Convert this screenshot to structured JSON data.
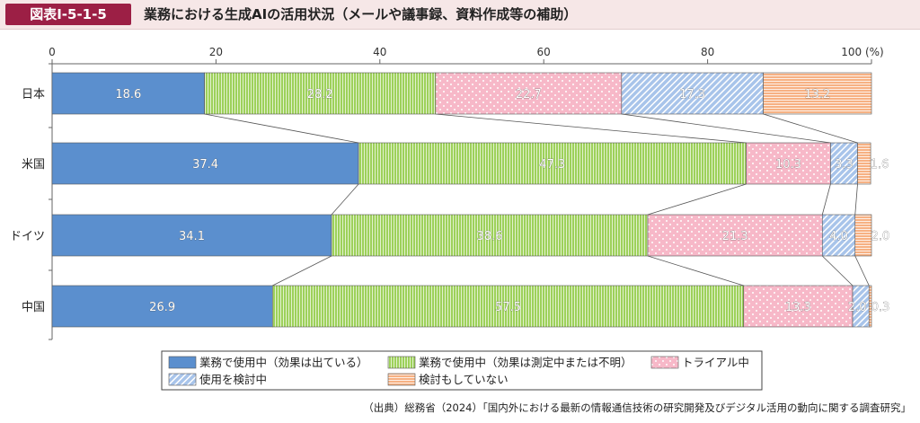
{
  "header": {
    "figure_number": "図表Ⅰ-5-1-5",
    "title": "業務における生成AIの活用状況（メールや議事録、資料作成等の補助）"
  },
  "chart_data": {
    "type": "bar",
    "orientation": "horizontal-stacked-100",
    "x_ticks": [
      "0",
      "20",
      "40",
      "60",
      "80",
      "100 (%)"
    ],
    "xlim": [
      0,
      100
    ],
    "categories": [
      "日本",
      "米国",
      "ドイツ",
      "中国"
    ],
    "series": [
      {
        "name": "業務で使用中（効果は出ている）",
        "color": "#5b8fce",
        "pattern": "solid",
        "values": [
          18.6,
          37.4,
          34.1,
          26.9
        ]
      },
      {
        "name": "業務で使用中（効果は測定中または不明）",
        "color": "#9dd15a",
        "pattern": "vlines",
        "values": [
          28.2,
          47.3,
          38.6,
          57.5
        ]
      },
      {
        "name": "トライアル中",
        "color": "#f7b8c8",
        "pattern": "dots",
        "values": [
          22.7,
          10.3,
          21.3,
          13.3
        ]
      },
      {
        "name": "使用を検討中",
        "color": "#a8c4ea",
        "pattern": "diag",
        "values": [
          17.3,
          3.3,
          4.0,
          2.0
        ]
      },
      {
        "name": "検討もしていない",
        "color": "#f7b183",
        "pattern": "hlines",
        "values": [
          13.2,
          1.6,
          2.0,
          0.3
        ]
      }
    ],
    "value_labels": [
      [
        "18.6",
        "28.2",
        "22.7",
        "17.3",
        "13.2"
      ],
      [
        "37.4",
        "47.3",
        "10.3",
        "3.3",
        "1.6"
      ],
      [
        "34.1",
        "38.6",
        "21.3",
        "4.0",
        "2.0"
      ],
      [
        "26.9",
        "57.5",
        "13.3",
        "2.0",
        "0.3"
      ]
    ],
    "legend_placement": "bottom"
  },
  "source": "（出典）総務省（2024）「国内外における最新の情報通信技術の研究開発及びデジタル活用の動向に関する調査研究」"
}
